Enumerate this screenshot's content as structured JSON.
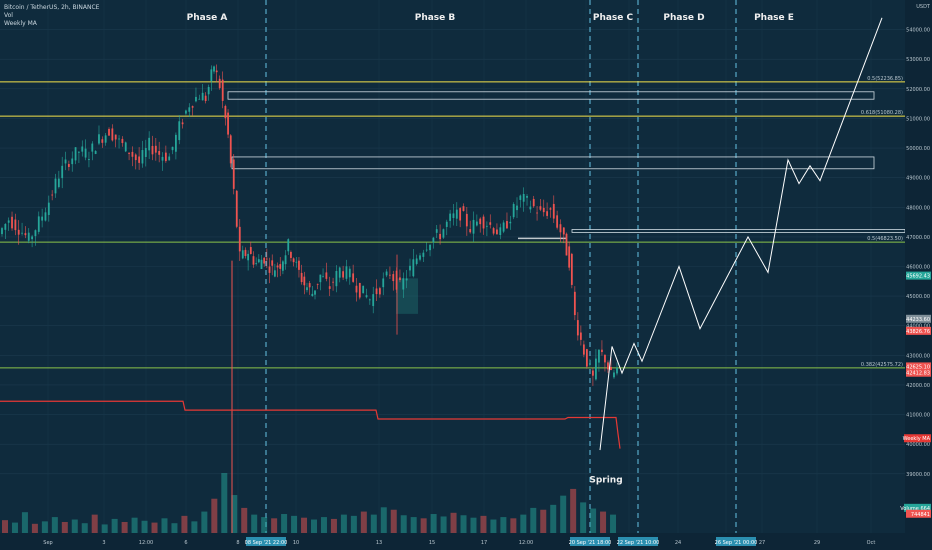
{
  "header": {
    "symbol": "Bitcoin / TetherUS, 2h, BINANCE",
    "vol_label": "Vol",
    "ma_label": "Weekly MA"
  },
  "colors": {
    "background": "#0f2b3d",
    "up_candle": "#26a69a",
    "down_candle": "#ef5350",
    "fib_gold": "#f5e24a",
    "fib_green": "#8bc34a",
    "weekly_ma": "#e53935",
    "projection": "#ffffff",
    "phase_divider": "#6fd3f5"
  },
  "chart_data": {
    "type": "candlestick",
    "ylim": [
      37000,
      55000
    ],
    "y_unit_label": "USDT",
    "y_ticks": [
      54000,
      53000,
      52000,
      51000,
      50000,
      49000,
      48000,
      47000,
      46000,
      45000,
      44000,
      43000,
      42000,
      41000,
      40000,
      39000
    ],
    "y_tick_labels": [
      "54000.00",
      "53000.00",
      "52000.00",
      "51000.00",
      "50000.00",
      "49000.00",
      "48000.00",
      "47000.00",
      "46000.00",
      "45000.00",
      "44000.00",
      "43000.00",
      "42000.00",
      "41000.00",
      "40000.00",
      "39000.00"
    ],
    "x_ticks": [
      "Sep",
      "3",
      "12:00",
      "6",
      "8",
      "10",
      "13",
      "15",
      "17",
      "12:00",
      "20",
      "22",
      "24",
      "26",
      "27",
      "29",
      "Oct"
    ],
    "x_highlight_labels": [
      "08 Sep '21 22:00",
      "20 Sep '21 18:00",
      "22 Sep '21 10:00",
      "26 Sep '21 00:00"
    ],
    "phases": [
      "Phase A",
      "Phase B",
      "Phase C",
      "Phase D",
      "Phase E"
    ],
    "annotations": [
      "Spring"
    ],
    "price_path": [
      [
        0,
        47100
      ],
      [
        5,
        47600
      ],
      [
        10,
        47300
      ],
      [
        15,
        46900
      ],
      [
        20,
        47500
      ],
      [
        25,
        48200
      ],
      [
        30,
        49100
      ],
      [
        35,
        49600
      ],
      [
        40,
        49900
      ],
      [
        45,
        49800
      ],
      [
        50,
        50300
      ],
      [
        55,
        50600
      ],
      [
        60,
        50200
      ],
      [
        65,
        49900
      ],
      [
        70,
        49500
      ],
      [
        75,
        50100
      ],
      [
        80,
        49800
      ],
      [
        85,
        49700
      ],
      [
        90,
        50700
      ],
      [
        95,
        51500
      ],
      [
        100,
        51800
      ],
      [
        103,
        51700
      ],
      [
        107,
        52800
      ],
      [
        110,
        52100
      ],
      [
        114,
        50400
      ],
      [
        117,
        48500
      ],
      [
        120,
        46300
      ],
      [
        124,
        46500
      ],
      [
        128,
        46100
      ],
      [
        132,
        46300
      ],
      [
        136,
        45900
      ],
      [
        140,
        46100
      ],
      [
        144,
        46700
      ],
      [
        148,
        46000
      ],
      [
        152,
        45400
      ],
      [
        156,
        45100
      ],
      [
        160,
        45700
      ],
      [
        165,
        45300
      ],
      [
        170,
        45900
      ],
      [
        175,
        45700
      ],
      [
        180,
        45200
      ],
      [
        185,
        44900
      ],
      [
        190,
        45300
      ],
      [
        195,
        45800
      ],
      [
        200,
        45300
      ],
      [
        205,
        45900
      ],
      [
        210,
        46500
      ],
      [
        215,
        46900
      ],
      [
        220,
        47100
      ],
      [
        225,
        47600
      ],
      [
        230,
        47800
      ],
      [
        235,
        47300
      ],
      [
        240,
        47600
      ],
      [
        245,
        47400
      ],
      [
        250,
        47100
      ],
      [
        255,
        47700
      ],
      [
        260,
        48300
      ],
      [
        265,
        48100
      ],
      [
        270,
        47800
      ],
      [
        275,
        47900
      ],
      [
        280,
        47200
      ],
      [
        284,
        46200
      ],
      [
        287,
        44300
      ],
      [
        290,
        43500
      ],
      [
        293,
        42800
      ],
      [
        296,
        42200
      ],
      [
        299,
        43100
      ],
      [
        302,
        42900
      ],
      [
        305,
        42300
      ],
      [
        308,
        42500
      ]
    ],
    "volume": [
      210,
      170,
      340,
      150,
      190,
      260,
      180,
      220,
      160,
      300,
      140,
      230,
      180,
      250,
      200,
      170,
      240,
      160,
      280,
      190,
      350,
      560,
      980,
      620,
      410,
      300,
      260,
      240,
      310,
      280,
      250,
      220,
      260,
      230,
      300,
      280,
      350,
      300,
      420,
      380,
      290,
      260,
      240,
      310,
      270,
      330,
      290,
      250,
      280,
      220,
      260,
      240,
      300,
      410,
      380,
      460,
      610,
      720,
      500,
      400,
      350,
      300
    ],
    "weekly_ma": [
      [
        0,
        41450
      ],
      [
        183,
        41450
      ],
      [
        185,
        41150
      ],
      [
        376,
        41150
      ],
      [
        378,
        40850
      ],
      [
        565,
        40850
      ],
      [
        568,
        40900
      ],
      [
        616,
        40900
      ],
      [
        618,
        40350
      ],
      [
        620,
        39850
      ]
    ],
    "projection": [
      [
        600,
        39800
      ],
      [
        612,
        43300
      ],
      [
        622,
        42400
      ],
      [
        634,
        43400
      ],
      [
        642,
        42800
      ],
      [
        679,
        46000
      ],
      [
        700,
        43900
      ],
      [
        748,
        47000
      ],
      [
        768,
        45800
      ],
      [
        788,
        49600
      ],
      [
        799,
        48800
      ],
      [
        810,
        49400
      ],
      [
        820,
        48900
      ],
      [
        882,
        54400
      ]
    ],
    "fib_levels": [
      {
        "label": "0.5(52236.85)",
        "value": 52236.85
      },
      {
        "label": "0.618(51080.28)",
        "value": 51080.28
      },
      {
        "label": "0.5(46823.50)",
        "value": 46823.5
      },
      {
        "label": "0.382(42575.72)",
        "value": 42575.72
      }
    ],
    "zones": [
      {
        "price_low": 51650,
        "price_high": 51900
      },
      {
        "price_low": 49300,
        "price_high": 49700
      },
      {
        "price_low": 47150,
        "price_high": 47250
      }
    ],
    "price_tags": [
      {
        "label": "45692.43",
        "value": 45692.43,
        "color": "#26a69a"
      },
      {
        "label": "44233.60",
        "value": 44233.6,
        "color": "#7f8f99"
      },
      {
        "label": "43826.76",
        "value": 43826.76,
        "color": "#ef5350"
      },
      {
        "label": "42625.10",
        "value": 42625.1,
        "color": "#ef5350"
      },
      {
        "label": "42412.83",
        "value": 42412.83,
        "color": "#ef5350"
      },
      {
        "label": "Weekly MA",
        "value": 40200,
        "color": "#e53935"
      },
      {
        "label": "Volume 664",
        "value": 37850,
        "color": "#26a69a"
      },
      {
        "label": "744841",
        "value": 37650,
        "color": "#ef5350"
      }
    ]
  }
}
